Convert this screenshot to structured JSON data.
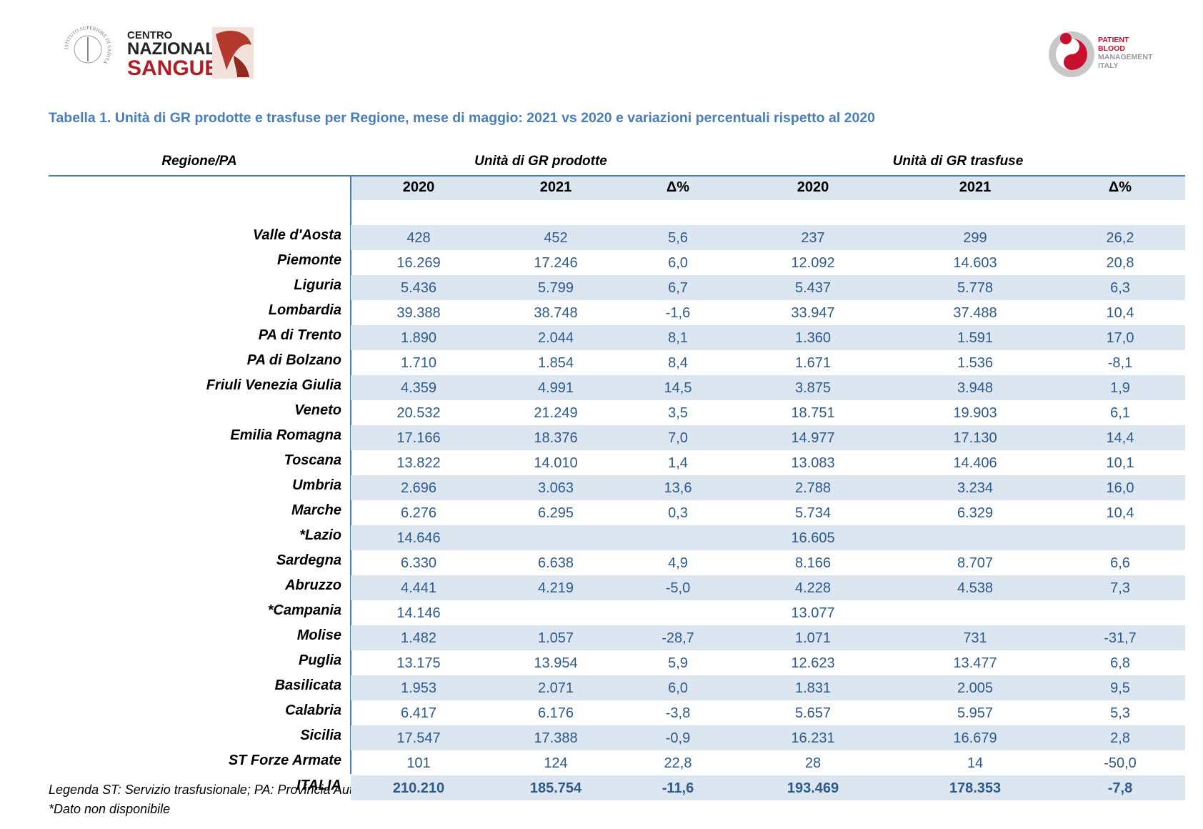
{
  "logos": {
    "iss": "ISTITUTO SUPERIORE DI SANITÀ",
    "cns": [
      "CENTRO",
      "NAZIONALE",
      "SANGUE"
    ],
    "pbm": [
      "PATIENT",
      "BLOOD",
      "MANAGEMENT",
      "ITALY"
    ]
  },
  "title": "Tabella 1. Unità di GR prodotte e trasfuse per Regione, mese di maggio: 2021 vs 2020 e variazioni percentuali rispetto al 2020",
  "table": {
    "region_header": "Regione/PA",
    "groups": [
      "Unità di GR prodotte",
      "Unità di GR trasfuse"
    ],
    "columns": [
      "2020",
      "2021",
      "Δ%",
      "2020",
      "2021",
      "Δ%"
    ],
    "rows": [
      {
        "region": "Valle d'Aosta",
        "values": [
          "428",
          "452",
          "5,6",
          "237",
          "299",
          "26,2"
        ]
      },
      {
        "region": "Piemonte",
        "values": [
          "16.269",
          "17.246",
          "6,0",
          "12.092",
          "14.603",
          "20,8"
        ]
      },
      {
        "region": "Liguria",
        "values": [
          "5.436",
          "5.799",
          "6,7",
          "5.437",
          "5.778",
          "6,3"
        ]
      },
      {
        "region": "Lombardia",
        "values": [
          "39.388",
          "38.748",
          "-1,6",
          "33.947",
          "37.488",
          "10,4"
        ]
      },
      {
        "region": "PA di Trento",
        "values": [
          "1.890",
          "2.044",
          "8,1",
          "1.360",
          "1.591",
          "17,0"
        ]
      },
      {
        "region": "PA di Bolzano",
        "values": [
          "1.710",
          "1.854",
          "8,4",
          "1.671",
          "1.536",
          "-8,1"
        ]
      },
      {
        "region": "Friuli Venezia Giulia",
        "values": [
          "4.359",
          "4.991",
          "14,5",
          "3.875",
          "3.948",
          "1,9"
        ]
      },
      {
        "region": "Veneto",
        "values": [
          "20.532",
          "21.249",
          "3,5",
          "18.751",
          "19.903",
          "6,1"
        ]
      },
      {
        "region": "Emilia Romagna",
        "values": [
          "17.166",
          "18.376",
          "7,0",
          "14.977",
          "17.130",
          "14,4"
        ]
      },
      {
        "region": "Toscana",
        "values": [
          "13.822",
          "14.010",
          "1,4",
          "13.083",
          "14.406",
          "10,1"
        ]
      },
      {
        "region": "Umbria",
        "values": [
          "2.696",
          "3.063",
          "13,6",
          "2.788",
          "3.234",
          "16,0"
        ]
      },
      {
        "region": "Marche",
        "values": [
          "6.276",
          "6.295",
          "0,3",
          "5.734",
          "6.329",
          "10,4"
        ]
      },
      {
        "region": "*Lazio",
        "values": [
          "14.646",
          null,
          null,
          "16.605",
          null,
          null
        ]
      },
      {
        "region": "Sardegna",
        "values": [
          "6.330",
          "6.638",
          "4,9",
          "8.166",
          "8.707",
          "6,6"
        ]
      },
      {
        "region": "Abruzzo",
        "values": [
          "4.441",
          "4.219",
          "-5,0",
          "4.228",
          "4.538",
          "7,3"
        ]
      },
      {
        "region": "*Campania",
        "values": [
          "14.146",
          null,
          null,
          "13.077",
          null,
          null
        ]
      },
      {
        "region": "Molise",
        "values": [
          "1.482",
          "1.057",
          "-28,7",
          "1.071",
          "731",
          "-31,7"
        ]
      },
      {
        "region": "Puglia",
        "values": [
          "13.175",
          "13.954",
          "5,9",
          "12.623",
          "13.477",
          "6,8"
        ]
      },
      {
        "region": "Basilicata",
        "values": [
          "1.953",
          "2.071",
          "6,0",
          "1.831",
          "2.005",
          "9,5"
        ]
      },
      {
        "region": "Calabria",
        "values": [
          "6.417",
          "6.176",
          "-3,8",
          "5.657",
          "5.957",
          "5,3"
        ]
      },
      {
        "region": "Sicilia",
        "values": [
          "17.547",
          "17.388",
          "-0,9",
          "16.231",
          "16.679",
          "2,8"
        ]
      },
      {
        "region": "ST Forze Armate",
        "values": [
          "101",
          "124",
          "22,8",
          "28",
          "14",
          "-50,0"
        ]
      },
      {
        "region": "ITALIA",
        "values": [
          "210.210",
          "185.754",
          "-11,6",
          "193.469",
          "178.353",
          "-7,8"
        ]
      }
    ]
  },
  "notes": [
    "Legenda ST: Servizio trasfusionale; PA: Provincia Autonoma",
    "*Dato non disponibile"
  ]
}
